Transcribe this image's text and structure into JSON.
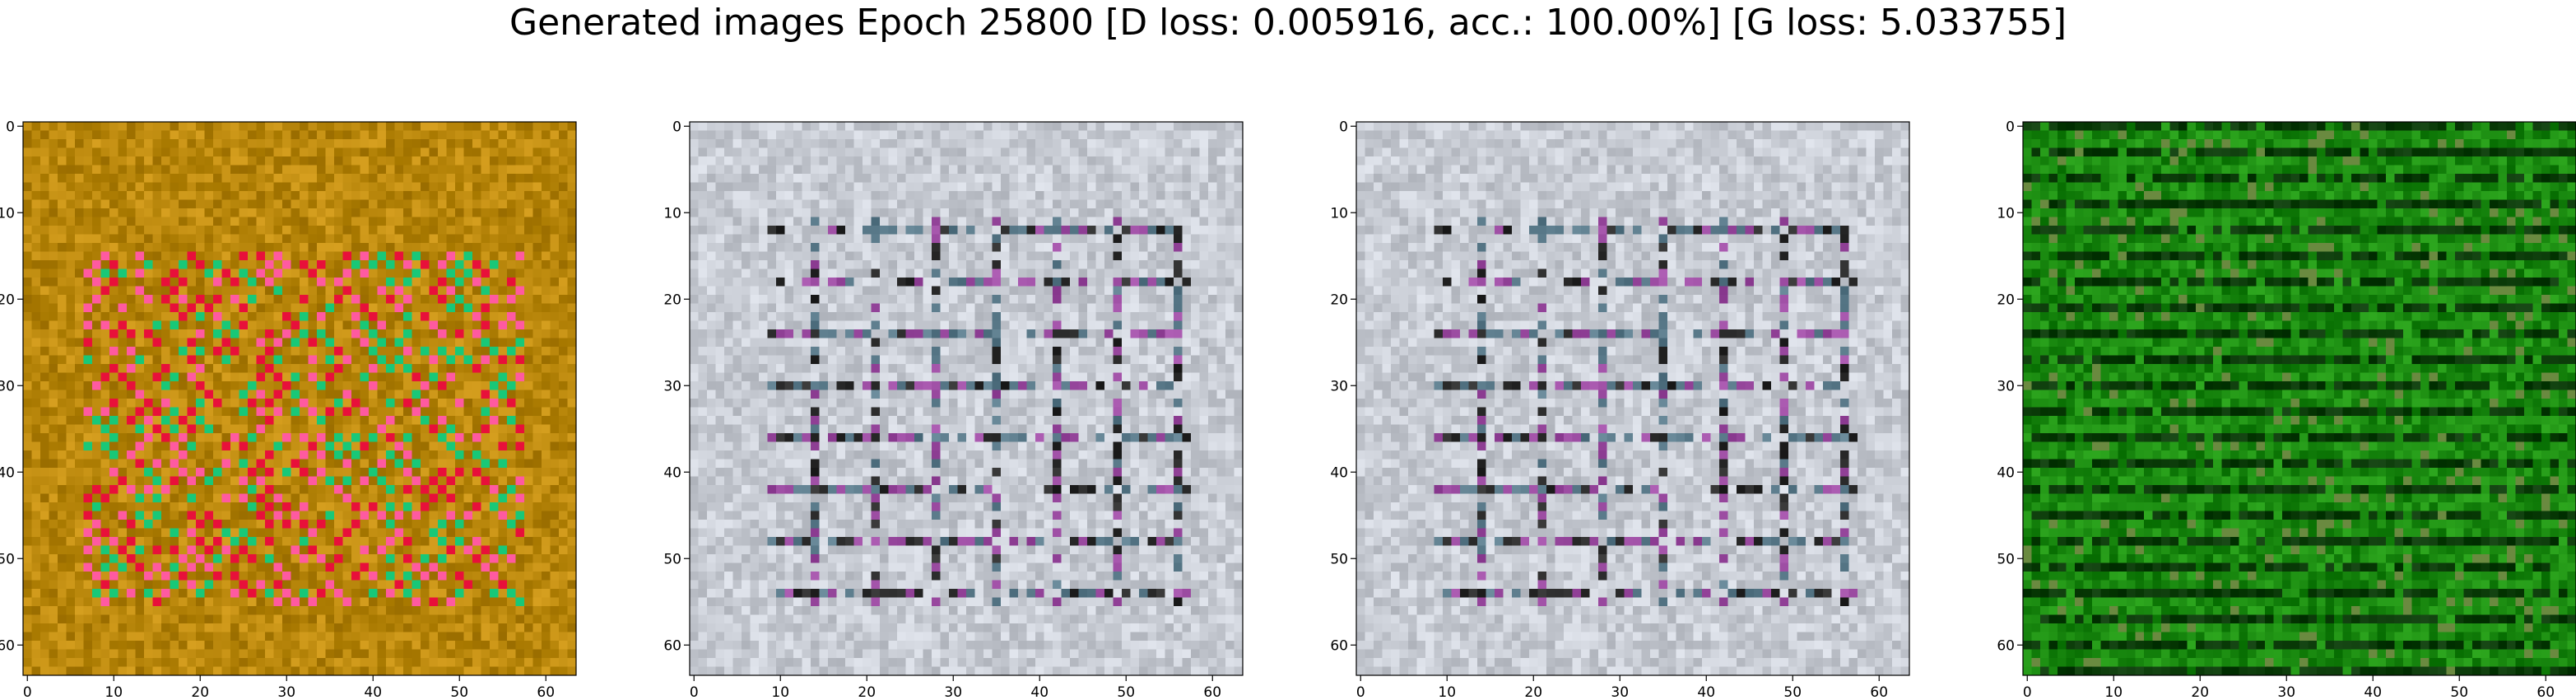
{
  "title": "Generated images Epoch 25800 [D loss: 0.005916, acc.: 100.00%] [G loss: 5.033755]",
  "panels": [
    {
      "theme": "red-green-on-ochre",
      "base_color": "#b8860b",
      "accent_colors": [
        "#e8103a",
        "#18c878",
        "#ff5aa0"
      ]
    },
    {
      "theme": "grey-grid-pattern",
      "base_color": "#c8ccd4",
      "accent_colors": [
        "#2a2a2a",
        "#5a7a8a",
        "#9a4aa0"
      ]
    },
    {
      "theme": "grey-grid-pattern",
      "base_color": "#c8ccd4",
      "accent_colors": [
        "#2a2a2a",
        "#5a7a8a",
        "#9a4aa0"
      ]
    },
    {
      "theme": "green-horizontal-bands",
      "base_color": "#1a8a10",
      "accent_colors": [
        "#0a3a08",
        "#2ea820",
        "#6a8a40"
      ]
    }
  ],
  "axes": {
    "xticks": [
      "0",
      "10",
      "20",
      "30",
      "40",
      "50",
      "60"
    ],
    "yticks": [
      "0",
      "10",
      "20",
      "30",
      "40",
      "50",
      "60"
    ]
  }
}
